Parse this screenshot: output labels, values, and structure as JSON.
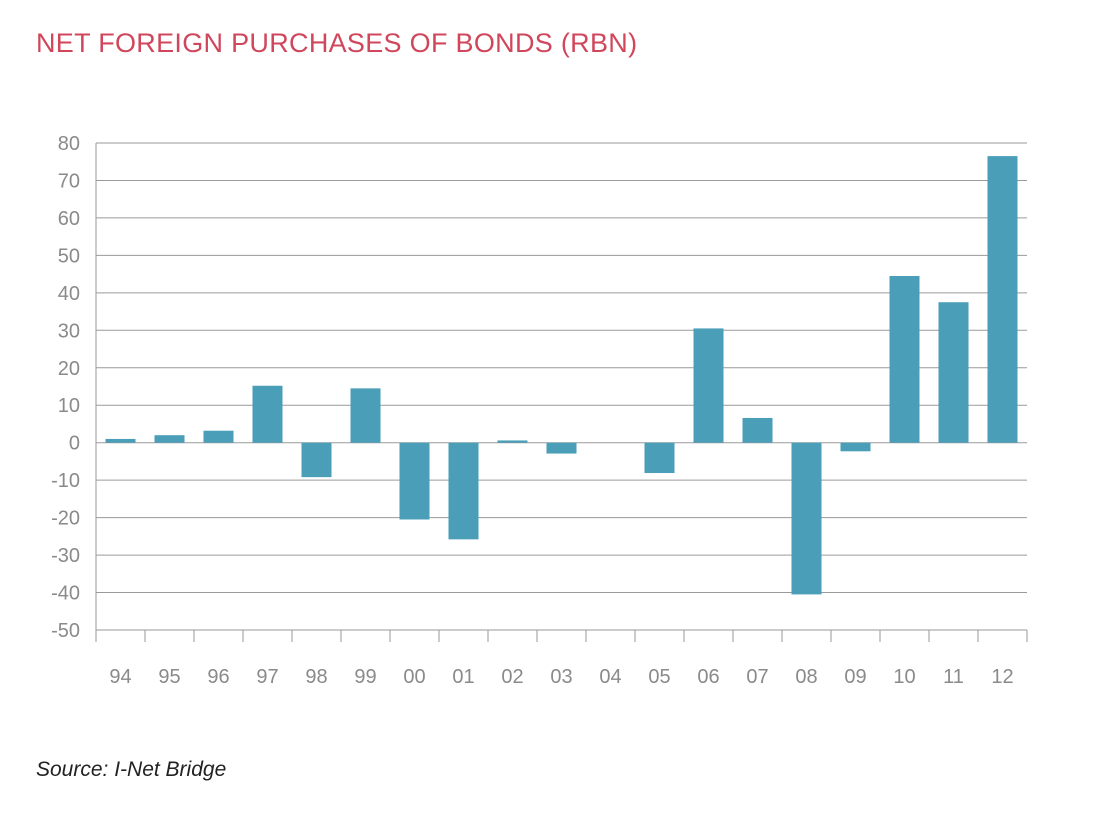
{
  "chart_data": {
    "type": "bar",
    "title": "NET FOREIGN PURCHASES OF BONDS (RBN)",
    "xlabel": "",
    "ylabel": "",
    "categories": [
      "94",
      "95",
      "96",
      "97",
      "98",
      "99",
      "00",
      "01",
      "02",
      "03",
      "04",
      "05",
      "06",
      "07",
      "08",
      "09",
      "10",
      "11",
      "12"
    ],
    "values": [
      1,
      2,
      3.2,
      15.2,
      -9.2,
      14.5,
      -20.5,
      -25.8,
      0.6,
      -2.9,
      0,
      -8.1,
      30.5,
      6.6,
      -40.5,
      -2.3,
      44.5,
      37.5,
      76.5
    ],
    "ylim": [
      -50,
      80
    ],
    "yticks": [
      80,
      70,
      60,
      50,
      40,
      30,
      20,
      10,
      0,
      -10,
      -20,
      -30,
      -40,
      -50
    ],
    "ytick_labels": [
      "80",
      "70",
      "60",
      "50",
      "40",
      "30",
      "20",
      "10",
      "0",
      "-10",
      "-20",
      "-30",
      "-40",
      "-50"
    ],
    "grid": true,
    "legend": "none",
    "bar_color": "#4a9eb8",
    "grid_color": "#9a9a9a",
    "axis_label_color": "#8a8a8a",
    "title_color": "#d0475c"
  },
  "source_note": "Source: I-Net Bridge"
}
